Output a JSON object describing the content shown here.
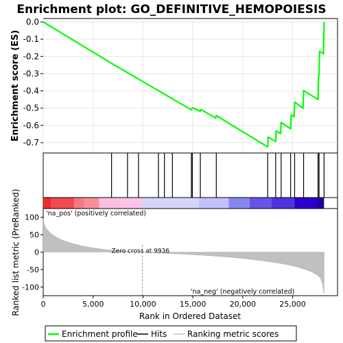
{
  "chart_data": {
    "type": "line",
    "title": "Enrichment plot: GO_DEFINITIVE_HEMOPOIESIS",
    "es_panel": {
      "ylabel": "Enrichment score (ES)",
      "ylim": [
        -0.76,
        0.02
      ],
      "yticks": [
        0.0,
        -0.1,
        -0.2,
        -0.3,
        -0.4,
        -0.5,
        -0.6,
        -0.7
      ],
      "ytick_labels": [
        "0.0",
        "-0.1",
        "-0.2",
        "-0.3",
        "-0.4",
        "-0.5",
        "-0.6",
        "-0.7"
      ],
      "grid": true,
      "series": [
        {
          "name": "Enrichment profile",
          "color": "#00ff00",
          "points": [
            [
              0,
              0.0
            ],
            [
              6850,
              -0.24
            ],
            [
              14850,
              -0.51
            ],
            [
              14950,
              -0.497
            ],
            [
              15750,
              -0.518
            ],
            [
              15800,
              -0.508
            ],
            [
              17300,
              -0.558
            ],
            [
              17350,
              -0.543
            ],
            [
              22500,
              -0.725
            ],
            [
              22550,
              -0.668
            ],
            [
              23300,
              -0.693
            ],
            [
              23350,
              -0.632
            ],
            [
              23800,
              -0.648
            ],
            [
              23850,
              -0.583
            ],
            [
              24800,
              -0.62
            ],
            [
              24850,
              -0.54
            ],
            [
              25150,
              -0.55
            ],
            [
              25200,
              -0.465
            ],
            [
              26050,
              -0.5
            ],
            [
              26100,
              -0.398
            ],
            [
              27550,
              -0.45
            ],
            [
              27600,
              -0.31
            ],
            [
              27650,
              -0.31
            ],
            [
              27700,
              -0.17
            ],
            [
              28100,
              -0.185
            ],
            [
              28150,
              0.0
            ]
          ]
        }
      ]
    },
    "hits": {
      "positions": [
        6850,
        8450,
        9550,
        11550,
        12150,
        12950,
        14850,
        14950,
        15750,
        17350,
        22500,
        23300,
        23850,
        24800,
        25200,
        26100,
        27550,
        27650,
        28150
      ]
    },
    "rank_bar": {
      "label_pos": "'na_pos' (positively correlated)",
      "label_neg": "'na_neg' (negatively correlated)",
      "pos_color": "#ff0000",
      "neg_color": "#0000ff",
      "segments": [
        {
          "end": 800,
          "color": "#ee2c2c"
        },
        {
          "end": 3100,
          "color": "#f04a50"
        },
        {
          "end": 4100,
          "color": "#f7787f"
        },
        {
          "end": 5600,
          "color": "#f98e9a"
        },
        {
          "end": 7700,
          "color": "#fdbfde"
        },
        {
          "end": 9900,
          "color": "#fdc4e8"
        },
        {
          "end": 15600,
          "color": "#d6d4fa"
        },
        {
          "end": 18600,
          "color": "#c3c1fb"
        },
        {
          "end": 20700,
          "color": "#8787f2"
        },
        {
          "end": 22900,
          "color": "#6654e8"
        },
        {
          "end": 25200,
          "color": "#4f33de"
        },
        {
          "end": 27400,
          "color": "#2c00cc"
        },
        {
          "end": 28150,
          "color": "#1f00a4"
        }
      ]
    },
    "metric_panel": {
      "ylabel": "Ranked list metric (PreRanked)",
      "ylim": [
        -125,
        125
      ],
      "yticks": [
        100,
        50,
        0,
        -50,
        -100
      ],
      "ytick_labels": [
        "100",
        "50",
        "0",
        "-50",
        "-100"
      ],
      "zero_cross_label": "Zero cross at 9936",
      "zero_cross": 9936,
      "fill_color": "#c0c0c0",
      "curve": [
        [
          0,
          95
        ],
        [
          100,
          80
        ],
        [
          300,
          68
        ],
        [
          600,
          58
        ],
        [
          1000,
          48
        ],
        [
          1500,
          40
        ],
        [
          2000,
          33
        ],
        [
          3000,
          24
        ],
        [
          4000,
          17
        ],
        [
          5000,
          12
        ],
        [
          6000,
          8
        ],
        [
          7000,
          5
        ],
        [
          8000,
          3
        ],
        [
          9000,
          1
        ],
        [
          9936,
          0
        ],
        [
          12000,
          -3
        ],
        [
          14000,
          -6
        ],
        [
          16000,
          -9
        ],
        [
          18000,
          -13
        ],
        [
          20000,
          -18
        ],
        [
          22000,
          -25
        ],
        [
          23500,
          -31
        ],
        [
          24500,
          -36
        ],
        [
          25500,
          -43
        ],
        [
          26300,
          -50
        ],
        [
          27000,
          -58
        ],
        [
          27500,
          -66
        ],
        [
          27800,
          -75
        ],
        [
          28000,
          -90
        ],
        [
          28100,
          -110
        ],
        [
          28150,
          -120
        ]
      ]
    },
    "xlabel": "Rank in Ordered Dataset",
    "xlim": [
      0,
      29500
    ],
    "xticks": [
      0,
      5000,
      10000,
      15000,
      20000,
      25000
    ],
    "xtick_labels": [
      "0",
      "5,000",
      "10,000",
      "15,000",
      "20,000",
      "25,000"
    ],
    "legend": {
      "placement": "bottom",
      "entries": [
        {
          "label": "Enrichment profile",
          "color": "#00ff00"
        },
        {
          "label": "Hits",
          "color": "#000000"
        },
        {
          "label": "Ranking metric scores",
          "color": "#c0c0c0"
        }
      ]
    }
  }
}
